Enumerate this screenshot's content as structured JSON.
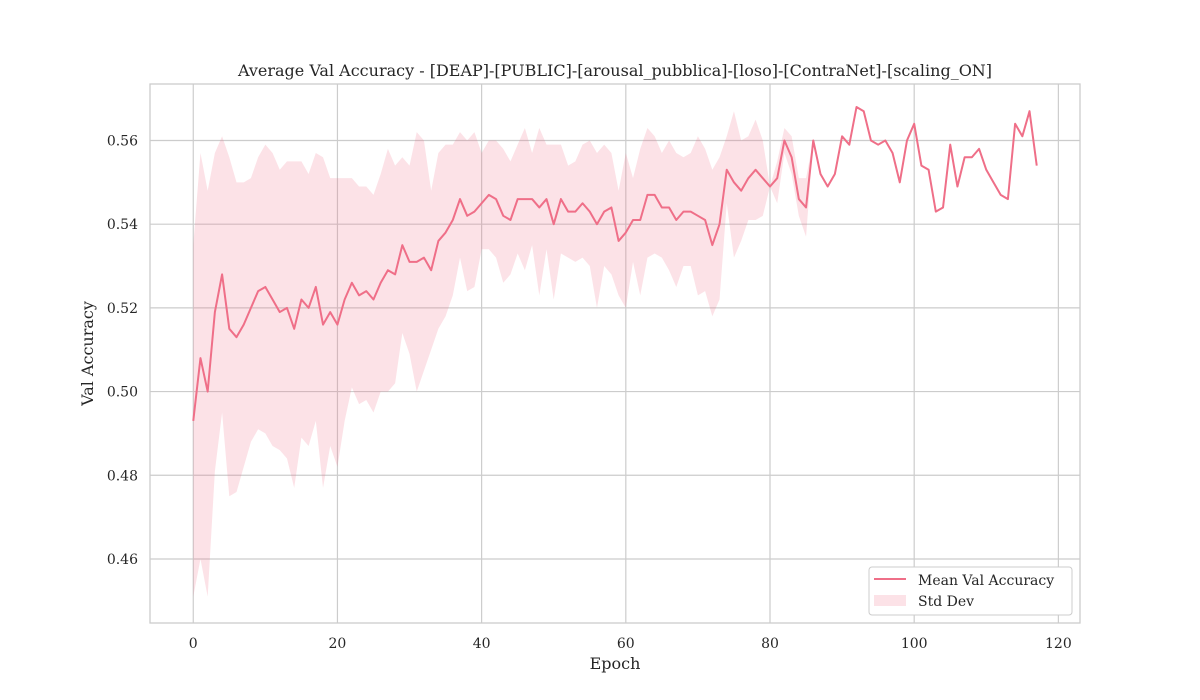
{
  "chart_data": {
    "type": "line",
    "title": "Average Val Accuracy - [DEAP]-[PUBLIC]-[arousal_pubblica]-[loso]-[ContraNet]-[scaling_ON]",
    "xlabel": "Epoch",
    "ylabel": "Val Accuracy",
    "xlim": [
      -6,
      123
    ],
    "ylim": [
      0.4447,
      0.5735
    ],
    "xticks": [
      0,
      20,
      40,
      60,
      80,
      100,
      120
    ],
    "yticks": [
      0.46,
      0.48,
      0.5,
      0.52,
      0.54,
      0.56
    ],
    "ytick_labels": [
      "0.46",
      "0.48",
      "0.50",
      "0.52",
      "0.54",
      "0.56"
    ],
    "grid": true,
    "legend_position": "lower-right",
    "colors": {
      "line": "#ef6f88",
      "band": "#ef6f88"
    },
    "series": [
      {
        "name": "Mean Val Accuracy",
        "x": [
          0,
          1,
          2,
          3,
          4,
          5,
          6,
          7,
          8,
          9,
          10,
          11,
          12,
          13,
          14,
          15,
          16,
          17,
          18,
          19,
          20,
          21,
          22,
          23,
          24,
          25,
          26,
          27,
          28,
          29,
          30,
          31,
          32,
          33,
          34,
          35,
          36,
          37,
          38,
          39,
          40,
          41,
          42,
          43,
          44,
          45,
          46,
          47,
          48,
          49,
          50,
          51,
          52,
          53,
          54,
          55,
          56,
          57,
          58,
          59,
          60,
          61,
          62,
          63,
          64,
          65,
          66,
          67,
          68,
          69,
          70,
          71,
          72,
          73,
          74,
          75,
          76,
          77,
          78,
          79,
          80,
          81,
          82,
          83,
          84,
          85,
          86,
          87,
          88,
          89,
          90,
          91,
          92,
          93,
          94,
          95,
          96,
          97,
          98,
          99,
          100,
          101,
          102,
          103,
          104,
          105,
          106,
          107,
          108,
          109,
          110,
          111,
          112,
          113,
          114,
          115,
          116,
          117
        ],
        "values": [
          0.493,
          0.508,
          0.5,
          0.519,
          0.528,
          0.515,
          0.513,
          0.516,
          0.52,
          0.524,
          0.525,
          0.522,
          0.519,
          0.52,
          0.515,
          0.522,
          0.52,
          0.525,
          0.516,
          0.519,
          0.516,
          0.522,
          0.526,
          0.523,
          0.524,
          0.522,
          0.526,
          0.529,
          0.528,
          0.535,
          0.531,
          0.531,
          0.532,
          0.529,
          0.536,
          0.538,
          0.541,
          0.546,
          0.542,
          0.543,
          0.545,
          0.547,
          0.546,
          0.542,
          0.541,
          0.546,
          0.546,
          0.546,
          0.544,
          0.546,
          0.54,
          0.546,
          0.543,
          0.543,
          0.545,
          0.543,
          0.54,
          0.543,
          0.544,
          0.536,
          0.538,
          0.541,
          0.541,
          0.547,
          0.547,
          0.544,
          0.544,
          0.541,
          0.543,
          0.543,
          0.542,
          0.541,
          0.535,
          0.54,
          0.553,
          0.55,
          0.548,
          0.551,
          0.553,
          0.551,
          0.549,
          0.551,
          0.56,
          0.556,
          0.546,
          0.544,
          0.56,
          0.552,
          0.549,
          0.552,
          0.561,
          0.559,
          0.568,
          0.567,
          0.56,
          0.559,
          0.56,
          0.557,
          0.55,
          0.56,
          0.564,
          0.554,
          0.553,
          0.543,
          0.544,
          0.559,
          0.549,
          0.556,
          0.556,
          0.558,
          0.553,
          0.55,
          0.547,
          0.546,
          0.564,
          0.561,
          0.567,
          0.554
        ]
      },
      {
        "name": "Std Dev",
        "x": [
          0,
          1,
          2,
          3,
          4,
          5,
          6,
          7,
          8,
          9,
          10,
          11,
          12,
          13,
          14,
          15,
          16,
          17,
          18,
          19,
          20,
          21,
          22,
          23,
          24,
          25,
          26,
          27,
          28,
          29,
          30,
          31,
          32,
          33,
          34,
          35,
          36,
          37,
          38,
          39,
          40,
          41,
          42,
          43,
          44,
          45,
          46,
          47,
          48,
          49,
          50,
          51,
          52,
          53,
          54,
          55,
          56,
          57,
          58,
          59,
          60,
          61,
          62,
          63,
          64,
          65,
          66,
          67,
          68,
          69,
          70,
          71,
          72,
          73,
          74,
          75,
          76,
          77,
          78,
          79,
          80,
          81,
          82,
          83,
          84,
          85,
          86,
          87,
          88,
          89,
          90,
          91,
          92,
          93,
          94,
          95,
          96,
          97,
          98,
          99,
          100,
          101,
          102,
          103,
          104,
          105,
          106,
          107,
          108,
          109,
          110,
          111,
          112,
          113,
          114,
          115,
          116,
          117
        ],
        "upper": [
          0.535,
          0.557,
          0.548,
          0.557,
          0.561,
          0.556,
          0.55,
          0.55,
          0.551,
          0.556,
          0.559,
          0.557,
          0.553,
          0.555,
          0.555,
          0.555,
          0.552,
          0.557,
          0.556,
          0.551,
          0.551,
          0.551,
          0.551,
          0.549,
          0.549,
          0.547,
          0.552,
          0.558,
          0.554,
          0.556,
          0.554,
          0.562,
          0.56,
          0.548,
          0.557,
          0.559,
          0.559,
          0.562,
          0.56,
          0.562,
          0.557,
          0.56,
          0.56,
          0.558,
          0.555,
          0.559,
          0.563,
          0.557,
          0.563,
          0.559,
          0.559,
          0.559,
          0.554,
          0.555,
          0.559,
          0.56,
          0.557,
          0.559,
          0.557,
          0.548,
          0.557,
          0.551,
          0.558,
          0.563,
          0.561,
          0.557,
          0.56,
          0.557,
          0.556,
          0.557,
          0.561,
          0.558,
          0.553,
          0.556,
          0.561,
          0.567,
          0.56,
          0.561,
          0.565,
          0.56,
          0.549,
          0.555,
          0.563,
          0.561,
          0.551,
          0.551,
          0.56,
          0.552,
          0.549,
          0.552,
          0.561,
          0.559,
          0.568,
          0.567,
          0.56,
          0.559,
          0.56,
          0.557,
          0.55,
          0.56,
          0.564,
          0.554,
          0.553,
          0.543,
          0.544,
          0.559,
          0.549,
          0.556,
          0.556,
          0.558,
          0.553,
          0.55,
          0.547,
          0.546,
          0.564,
          0.561,
          0.567,
          0.554
        ],
        "lower": [
          0.451,
          0.46,
          0.451,
          0.481,
          0.495,
          0.475,
          0.476,
          0.482,
          0.488,
          0.491,
          0.49,
          0.487,
          0.486,
          0.484,
          0.477,
          0.489,
          0.487,
          0.493,
          0.477,
          0.487,
          0.482,
          0.493,
          0.501,
          0.497,
          0.498,
          0.495,
          0.5,
          0.5,
          0.502,
          0.514,
          0.509,
          0.5,
          0.505,
          0.51,
          0.515,
          0.518,
          0.523,
          0.532,
          0.524,
          0.525,
          0.534,
          0.534,
          0.532,
          0.526,
          0.528,
          0.533,
          0.529,
          0.535,
          0.523,
          0.534,
          0.522,
          0.533,
          0.532,
          0.531,
          0.532,
          0.53,
          0.52,
          0.53,
          0.528,
          0.523,
          0.52,
          0.531,
          0.523,
          0.532,
          0.533,
          0.532,
          0.529,
          0.525,
          0.53,
          0.53,
          0.523,
          0.524,
          0.518,
          0.522,
          0.545,
          0.532,
          0.536,
          0.541,
          0.541,
          0.542,
          0.549,
          0.545,
          0.557,
          0.552,
          0.542,
          0.537,
          0.56,
          0.552,
          0.549,
          0.552,
          0.561,
          0.559,
          0.568,
          0.567,
          0.56,
          0.559,
          0.56,
          0.557,
          0.55,
          0.56,
          0.564,
          0.554,
          0.553,
          0.543,
          0.544,
          0.559,
          0.549,
          0.556,
          0.556,
          0.558,
          0.553,
          0.55,
          0.547,
          0.546,
          0.564,
          0.561,
          0.567,
          0.554
        ]
      }
    ],
    "legend": [
      "Mean Val Accuracy",
      "Std Dev"
    ]
  }
}
